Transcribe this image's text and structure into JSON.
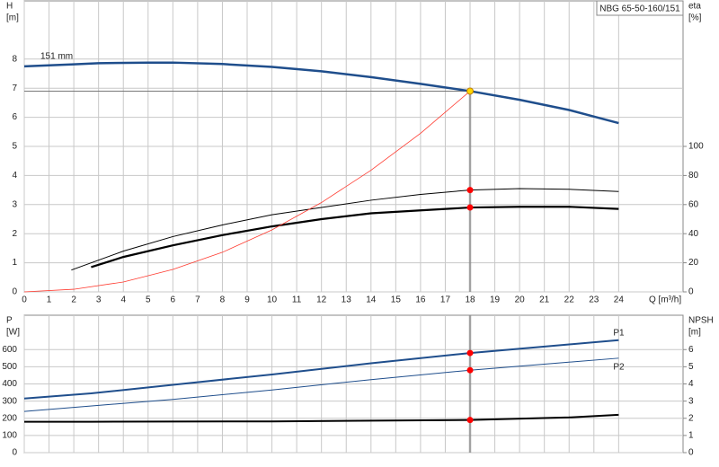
{
  "chart_data": [
    {
      "type": "line",
      "title": "NBG 65-50-160/151",
      "ylabel": [
        "H",
        "[m]"
      ],
      "y2label": [
        "eta",
        "[%]"
      ],
      "xlabel": "Q [m³/h]",
      "xlim": [
        0,
        26.6
      ],
      "xticks": [
        0,
        1,
        2,
        3,
        4,
        5,
        6,
        7,
        8,
        9,
        10,
        11,
        12,
        13,
        14,
        15,
        16,
        17,
        18,
        19,
        20,
        21,
        22,
        23,
        24
      ],
      "ylim": [
        0,
        10
      ],
      "yticks": [
        0,
        1,
        2,
        3,
        4,
        5,
        6,
        7,
        8
      ],
      "y2lim": [
        0,
        200
      ],
      "y2ticks": [
        0,
        20,
        40,
        60,
        80,
        100
      ],
      "grid": true,
      "reference": {
        "x": 18,
        "y": 6.9
      },
      "series": [
        {
          "name": "151 mm",
          "label_at": "start",
          "color": "#1f4e8c",
          "width": 2.5,
          "x": [
            0,
            2,
            3,
            5,
            6,
            8,
            10,
            12,
            14,
            16,
            18,
            20,
            22,
            24
          ],
          "values": [
            7.75,
            7.82,
            7.86,
            7.88,
            7.88,
            7.83,
            7.73,
            7.58,
            7.38,
            7.15,
            6.9,
            6.6,
            6.25,
            5.8
          ]
        },
        {
          "axis": "y2",
          "color": "#000000",
          "width": 1,
          "x": [
            1.9,
            4,
            6,
            8,
            10,
            12,
            14,
            16,
            18,
            20,
            22,
            24
          ],
          "values": [
            15,
            28,
            38,
            46,
            53,
            58,
            63,
            67,
            70,
            71,
            70.5,
            69
          ]
        },
        {
          "axis": "y2",
          "color": "#000000",
          "width": 2.2,
          "x": [
            2.7,
            4,
            6,
            8,
            10,
            12,
            14,
            16,
            18,
            20,
            22,
            24
          ],
          "values": [
            17,
            24,
            32,
            39,
            45,
            50,
            54,
            56,
            58,
            58.5,
            58.5,
            57
          ]
        },
        {
          "color": "#ff3b30",
          "width": 0.8,
          "x": [
            0,
            2,
            4,
            6,
            8,
            10,
            12,
            14,
            16,
            18
          ],
          "values": [
            0,
            0.09,
            0.34,
            0.77,
            1.36,
            2.13,
            3.07,
            4.18,
            5.45,
            6.9
          ]
        }
      ],
      "points": [
        {
          "x": 18,
          "y": 6.9,
          "color": "#ffd700"
        },
        {
          "x": 18,
          "y": 70,
          "axis": "y2",
          "color": "#ff0000"
        },
        {
          "x": 18,
          "y": 58,
          "axis": "y2",
          "color": "#ff0000"
        }
      ]
    },
    {
      "type": "line",
      "ylabel": [
        "P",
        "[W]"
      ],
      "y2label": [
        "NPSH",
        "[m]"
      ],
      "xlim": [
        0,
        26.6
      ],
      "xticks": [
        0,
        1,
        2,
        3,
        4,
        5,
        6,
        7,
        8,
        9,
        10,
        11,
        12,
        13,
        14,
        15,
        16,
        17,
        18,
        19,
        20,
        21,
        22,
        23,
        24
      ],
      "ylim": [
        0,
        800
      ],
      "yticks": [
        0,
        100,
        200,
        300,
        400,
        500,
        600
      ],
      "y2lim": [
        0,
        8
      ],
      "y2ticks": [
        0,
        1,
        2,
        3,
        4,
        5,
        6
      ],
      "grid": true,
      "reference": {
        "x": 18
      },
      "series": [
        {
          "name": "P1",
          "label_at": "end",
          "color": "#1f4e8c",
          "width": 2,
          "x": [
            0,
            2.7,
            6,
            10,
            14,
            18,
            22,
            24
          ],
          "values": [
            315,
            345,
            395,
            455,
            520,
            580,
            630,
            655
          ]
        },
        {
          "name": "P2",
          "label_at": "end",
          "color": "#1f4e8c",
          "width": 1,
          "x": [
            0,
            6,
            10,
            14,
            18,
            24
          ],
          "values": [
            240,
            310,
            365,
            425,
            480,
            550
          ]
        },
        {
          "axis": "y2",
          "color": "#000000",
          "width": 2,
          "x": [
            0,
            2.7,
            10,
            18,
            22,
            24
          ],
          "values": [
            1.8,
            1.8,
            1.82,
            1.9,
            2.05,
            2.2
          ]
        }
      ],
      "points": [
        {
          "x": 18,
          "y": 580,
          "color": "#ff0000"
        },
        {
          "x": 18,
          "y": 480,
          "color": "#ff0000"
        },
        {
          "x": 18,
          "y": 1.9,
          "axis": "y2",
          "color": "#ff0000"
        }
      ]
    }
  ]
}
